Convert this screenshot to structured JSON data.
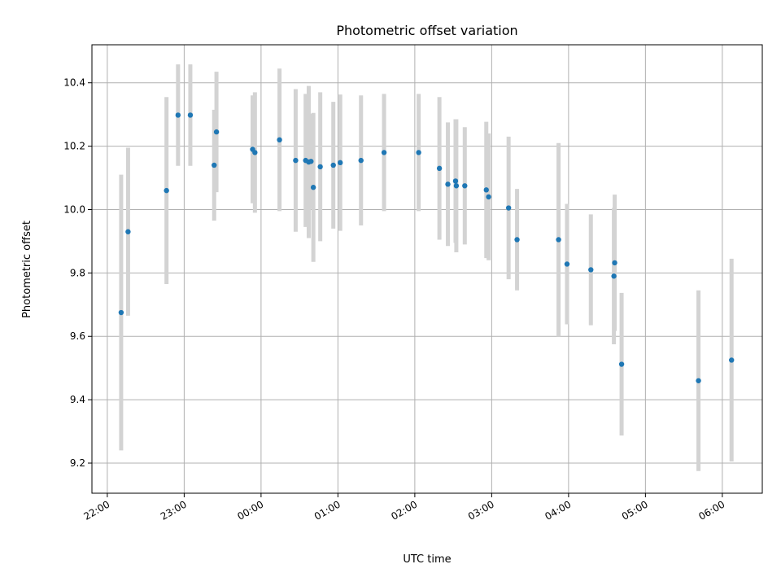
{
  "chart_data": {
    "type": "scatter",
    "title": "Photometric offset variation",
    "xlabel": "UTC time",
    "ylabel": "Photometric offset",
    "x_ticks": [
      "22:00",
      "23:00",
      "00:00",
      "01:00",
      "02:00",
      "03:00",
      "04:00",
      "05:00",
      "06:00"
    ],
    "y_ticks": [
      "9.2",
      "9.4",
      "9.6",
      "9.8",
      "10.0",
      "10.2",
      "10.4"
    ],
    "x_unit": "hours since 22:00 UTC",
    "xlim": [
      -0.2,
      8.52
    ],
    "ylim": [
      9.105,
      10.52
    ],
    "grid": true,
    "colors": {
      "point": "#1f77b4",
      "errorbar": "#d3d3d3",
      "grid": "#b0b0b0"
    },
    "points": [
      {
        "x": 0.18,
        "y": 9.675,
        "err": 0.435
      },
      {
        "x": 0.27,
        "y": 9.93,
        "err": 0.265
      },
      {
        "x": 0.77,
        "y": 10.06,
        "err": 0.295
      },
      {
        "x": 0.92,
        "y": 10.298,
        "err": 0.16
      },
      {
        "x": 1.08,
        "y": 10.298,
        "err": 0.16
      },
      {
        "x": 1.39,
        "y": 10.14,
        "err": 0.175
      },
      {
        "x": 1.42,
        "y": 10.245,
        "err": 0.19
      },
      {
        "x": 1.89,
        "y": 10.19,
        "err": 0.17
      },
      {
        "x": 1.92,
        "y": 10.18,
        "err": 0.19
      },
      {
        "x": 2.24,
        "y": 10.22,
        "err": 0.225
      },
      {
        "x": 2.45,
        "y": 10.155,
        "err": 0.225
      },
      {
        "x": 2.58,
        "y": 10.155,
        "err": 0.21
      },
      {
        "x": 2.62,
        "y": 10.15,
        "err": 0.24
      },
      {
        "x": 2.65,
        "y": 10.152,
        "err": 0.15
      },
      {
        "x": 2.68,
        "y": 10.07,
        "err": 0.235
      },
      {
        "x": 2.77,
        "y": 10.135,
        "err": 0.235
      },
      {
        "x": 2.94,
        "y": 10.14,
        "err": 0.2
      },
      {
        "x": 3.03,
        "y": 10.148,
        "err": 0.215
      },
      {
        "x": 3.3,
        "y": 10.155,
        "err": 0.205
      },
      {
        "x": 3.6,
        "y": 10.18,
        "err": 0.185
      },
      {
        "x": 4.05,
        "y": 10.18,
        "err": 0.185
      },
      {
        "x": 4.32,
        "y": 10.13,
        "err": 0.225
      },
      {
        "x": 4.43,
        "y": 10.08,
        "err": 0.195
      },
      {
        "x": 4.53,
        "y": 10.09,
        "err": 0.195
      },
      {
        "x": 4.54,
        "y": 10.075,
        "err": 0.21
      },
      {
        "x": 4.65,
        "y": 10.075,
        "err": 0.185
      },
      {
        "x": 4.93,
        "y": 10.062,
        "err": 0.215
      },
      {
        "x": 4.96,
        "y": 10.04,
        "err": 0.2
      },
      {
        "x": 5.22,
        "y": 10.005,
        "err": 0.225
      },
      {
        "x": 5.33,
        "y": 9.905,
        "err": 0.16
      },
      {
        "x": 5.87,
        "y": 9.905,
        "err": 0.305
      },
      {
        "x": 5.98,
        "y": 9.828,
        "err": 0.19
      },
      {
        "x": 6.29,
        "y": 9.81,
        "err": 0.175
      },
      {
        "x": 6.59,
        "y": 9.79,
        "err": 0.215
      },
      {
        "x": 6.6,
        "y": 9.832,
        "err": 0.215
      },
      {
        "x": 6.69,
        "y": 9.512,
        "err": 0.225
      },
      {
        "x": 7.69,
        "y": 9.46,
        "err": 0.285
      },
      {
        "x": 8.12,
        "y": 9.525,
        "err": 0.32
      }
    ]
  }
}
